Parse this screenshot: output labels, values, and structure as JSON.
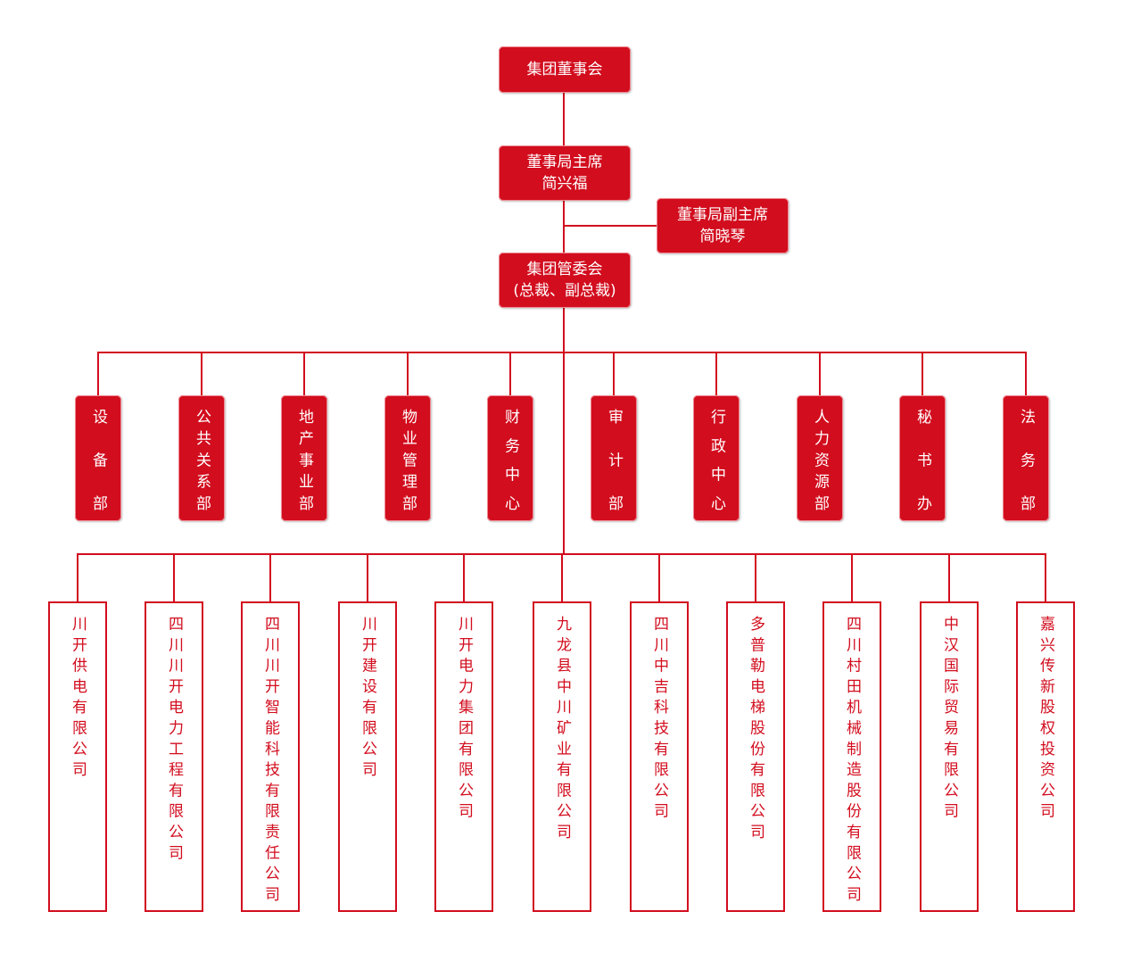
{
  "colors": {
    "primary": "#d20d1e",
    "text_on_primary": "#ffffff",
    "box_fill": "#ffffff"
  },
  "board": {
    "title": "集团董事会"
  },
  "chairman": {
    "title": "董事局主席",
    "name": "简兴福"
  },
  "vice_chairman": {
    "title": "董事局副主席",
    "name": "简晓琴"
  },
  "committee": {
    "title": "集团管委会",
    "subtitle": "(总裁、副总裁)"
  },
  "departments": [
    "设备部",
    "公共关系部",
    "地产事业部",
    "物业管理部",
    "财务中心",
    "审计部",
    "行政中心",
    "人力资源部",
    "秘书办",
    "法务部"
  ],
  "companies": [
    "川开供电有限公司",
    "四川川开电力工程有限公司",
    "四川川开智能科技有限责任公司",
    "川开建设有限公司",
    "川开电力集团有限公司",
    "九龙县中川矿业有限公司",
    "四川中吉科技有限公司",
    "多普勒电梯股份有限公司",
    "四川村田机械制造股份有限公司",
    "中汉国际贸易有限公司",
    "嘉兴传新股权投资公司"
  ]
}
